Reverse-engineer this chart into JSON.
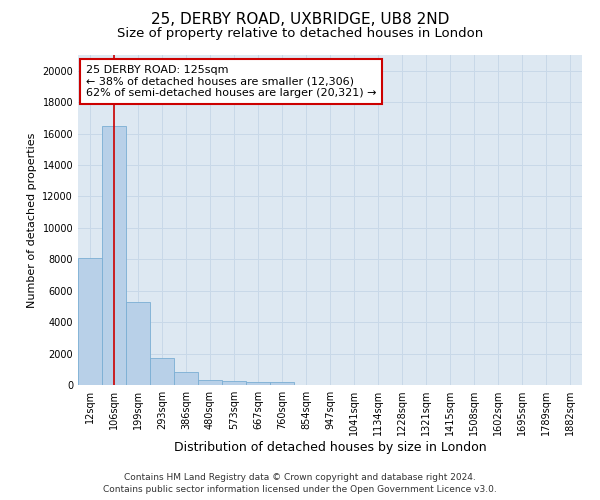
{
  "title1": "25, DERBY ROAD, UXBRIDGE, UB8 2ND",
  "title2": "Size of property relative to detached houses in London",
  "xlabel": "Distribution of detached houses by size in London",
  "ylabel": "Number of detached properties",
  "categories": [
    "12sqm",
    "106sqm",
    "199sqm",
    "293sqm",
    "386sqm",
    "480sqm",
    "573sqm",
    "667sqm",
    "760sqm",
    "854sqm",
    "947sqm",
    "1041sqm",
    "1134sqm",
    "1228sqm",
    "1321sqm",
    "1415sqm",
    "1508sqm",
    "1602sqm",
    "1695sqm",
    "1789sqm",
    "1882sqm"
  ],
  "values": [
    8100,
    16500,
    5300,
    1750,
    800,
    350,
    250,
    200,
    200,
    0,
    0,
    0,
    0,
    0,
    0,
    0,
    0,
    0,
    0,
    0,
    0
  ],
  "bar_color": "#b8d0e8",
  "bar_edge_color": "#7aaed4",
  "vline_x": 1,
  "vline_color": "#cc0000",
  "annotation_text": "25 DERBY ROAD: 125sqm\n← 38% of detached houses are smaller (12,306)\n62% of semi-detached houses are larger (20,321) →",
  "annotation_box_color": "#ffffff",
  "annotation_box_edge": "#cc0000",
  "ylim": [
    0,
    21000
  ],
  "yticks": [
    0,
    2000,
    4000,
    6000,
    8000,
    10000,
    12000,
    14000,
    16000,
    18000,
    20000
  ],
  "grid_color": "#c8d8e8",
  "bg_color": "#dde8f2",
  "footer1": "Contains HM Land Registry data © Crown copyright and database right 2024.",
  "footer2": "Contains public sector information licensed under the Open Government Licence v3.0.",
  "title1_fontsize": 11,
  "title2_fontsize": 9.5,
  "xlabel_fontsize": 9,
  "ylabel_fontsize": 8,
  "tick_fontsize": 7,
  "annot_fontsize": 8,
  "footer_fontsize": 6.5
}
